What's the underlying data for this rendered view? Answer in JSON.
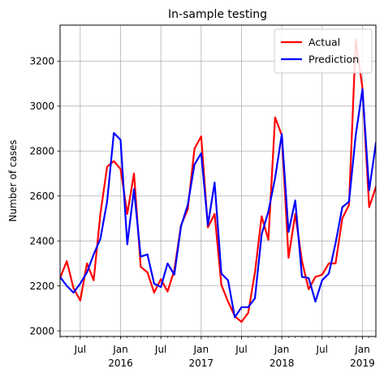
{
  "chart_data": {
    "type": "line",
    "title": "In-sample testing",
    "xlabel": "",
    "ylabel": "Number of cases",
    "x_start": "2015-04",
    "x_end": "2019-03",
    "ylim": [
      1975,
      3360
    ],
    "yticks": [
      2000,
      2200,
      2400,
      2600,
      2800,
      3000,
      3200
    ],
    "x_major_ticks": [
      {
        "date": "2015-07",
        "label": "Jul"
      },
      {
        "date": "2016-01",
        "label": "Jan",
        "label2": "2016"
      },
      {
        "date": "2016-07",
        "label": "Jul"
      },
      {
        "date": "2017-01",
        "label": "Jan",
        "label2": "2017"
      },
      {
        "date": "2017-07",
        "label": "Jul"
      },
      {
        "date": "2018-01",
        "label": "Jan",
        "label2": "2018"
      },
      {
        "date": "2018-07",
        "label": "Jul"
      },
      {
        "date": "2019-01",
        "label": "Jan",
        "label2": "2019"
      }
    ],
    "grid": true,
    "legend_position": "top-right",
    "series": [
      {
        "name": "Actual",
        "color": "#ff0000",
        "points": [
          [
            "2015-04-01",
            2235
          ],
          [
            "2015-05-01",
            2310
          ],
          [
            "2015-06-01",
            2190
          ],
          [
            "2015-07-01",
            2135
          ],
          [
            "2015-08-01",
            2300
          ],
          [
            "2015-09-01",
            2225
          ],
          [
            "2015-10-01",
            2520
          ],
          [
            "2015-11-01",
            2730
          ],
          [
            "2015-12-01",
            2755
          ],
          [
            "2016-01-01",
            2720
          ],
          [
            "2016-02-01",
            2520
          ],
          [
            "2016-03-01",
            2700
          ],
          [
            "2016-04-01",
            2285
          ],
          [
            "2016-05-01",
            2260
          ],
          [
            "2016-06-01",
            2170
          ],
          [
            "2016-07-01",
            2230
          ],
          [
            "2016-08-01",
            2175
          ],
          [
            "2016-09-01",
            2270
          ],
          [
            "2016-10-01",
            2470
          ],
          [
            "2016-11-01",
            2540
          ],
          [
            "2016-12-01",
            2810
          ],
          [
            "2017-01-01",
            2865
          ],
          [
            "2017-02-01",
            2460
          ],
          [
            "2017-03-01",
            2520
          ],
          [
            "2017-04-01",
            2205
          ],
          [
            "2017-05-01",
            2130
          ],
          [
            "2017-06-01",
            2065
          ],
          [
            "2017-07-01",
            2040
          ],
          [
            "2017-08-01",
            2080
          ],
          [
            "2017-09-01",
            2260
          ],
          [
            "2017-10-01",
            2510
          ],
          [
            "2017-11-01",
            2405
          ],
          [
            "2017-12-01",
            2950
          ],
          [
            "2018-01-01",
            2870
          ],
          [
            "2018-02-01",
            2325
          ],
          [
            "2018-03-01",
            2520
          ],
          [
            "2018-04-01",
            2310
          ],
          [
            "2018-05-01",
            2185
          ],
          [
            "2018-06-01",
            2240
          ],
          [
            "2018-07-01",
            2250
          ],
          [
            "2018-08-01",
            2300
          ],
          [
            "2018-09-01",
            2300
          ],
          [
            "2018-10-01",
            2500
          ],
          [
            "2018-11-01",
            2560
          ],
          [
            "2018-12-01",
            3295
          ],
          [
            "2019-01-01",
            3080
          ],
          [
            "2019-02-01",
            2550
          ],
          [
            "2019-03-01",
            2640
          ]
        ]
      },
      {
        "name": "Prediction",
        "color": "#0000ff",
        "points": [
          [
            "2015-04-01",
            2240
          ],
          [
            "2015-05-01",
            2200
          ],
          [
            "2015-06-01",
            2170
          ],
          [
            "2015-07-01",
            2210
          ],
          [
            "2015-08-01",
            2260
          ],
          [
            "2015-09-01",
            2340
          ],
          [
            "2015-10-01",
            2410
          ],
          [
            "2015-11-01",
            2575
          ],
          [
            "2015-12-01",
            2880
          ],
          [
            "2016-01-01",
            2850
          ],
          [
            "2016-02-01",
            2385
          ],
          [
            "2016-03-01",
            2630
          ],
          [
            "2016-04-01",
            2330
          ],
          [
            "2016-05-01",
            2340
          ],
          [
            "2016-06-01",
            2210
          ],
          [
            "2016-07-01",
            2195
          ],
          [
            "2016-08-01",
            2300
          ],
          [
            "2016-09-01",
            2250
          ],
          [
            "2016-10-01",
            2465
          ],
          [
            "2016-11-01",
            2560
          ],
          [
            "2016-12-01",
            2740
          ],
          [
            "2017-01-01",
            2790
          ],
          [
            "2017-02-01",
            2470
          ],
          [
            "2017-03-01",
            2660
          ],
          [
            "2017-04-01",
            2255
          ],
          [
            "2017-05-01",
            2225
          ],
          [
            "2017-06-01",
            2060
          ],
          [
            "2017-07-01",
            2105
          ],
          [
            "2017-08-01",
            2105
          ],
          [
            "2017-09-01",
            2145
          ],
          [
            "2017-10-01",
            2430
          ],
          [
            "2017-11-01",
            2530
          ],
          [
            "2017-12-01",
            2680
          ],
          [
            "2018-01-01",
            2875
          ],
          [
            "2018-02-01",
            2440
          ],
          [
            "2018-03-01",
            2580
          ],
          [
            "2018-04-01",
            2240
          ],
          [
            "2018-05-01",
            2235
          ],
          [
            "2018-06-01",
            2130
          ],
          [
            "2018-07-01",
            2225
          ],
          [
            "2018-08-01",
            2255
          ],
          [
            "2018-09-01",
            2390
          ],
          [
            "2018-10-01",
            2550
          ],
          [
            "2018-11-01",
            2575
          ],
          [
            "2018-12-01",
            2870
          ],
          [
            "2019-01-01",
            3075
          ],
          [
            "2019-02-01",
            2625
          ],
          [
            "2019-03-01",
            2835
          ]
        ]
      }
    ]
  }
}
